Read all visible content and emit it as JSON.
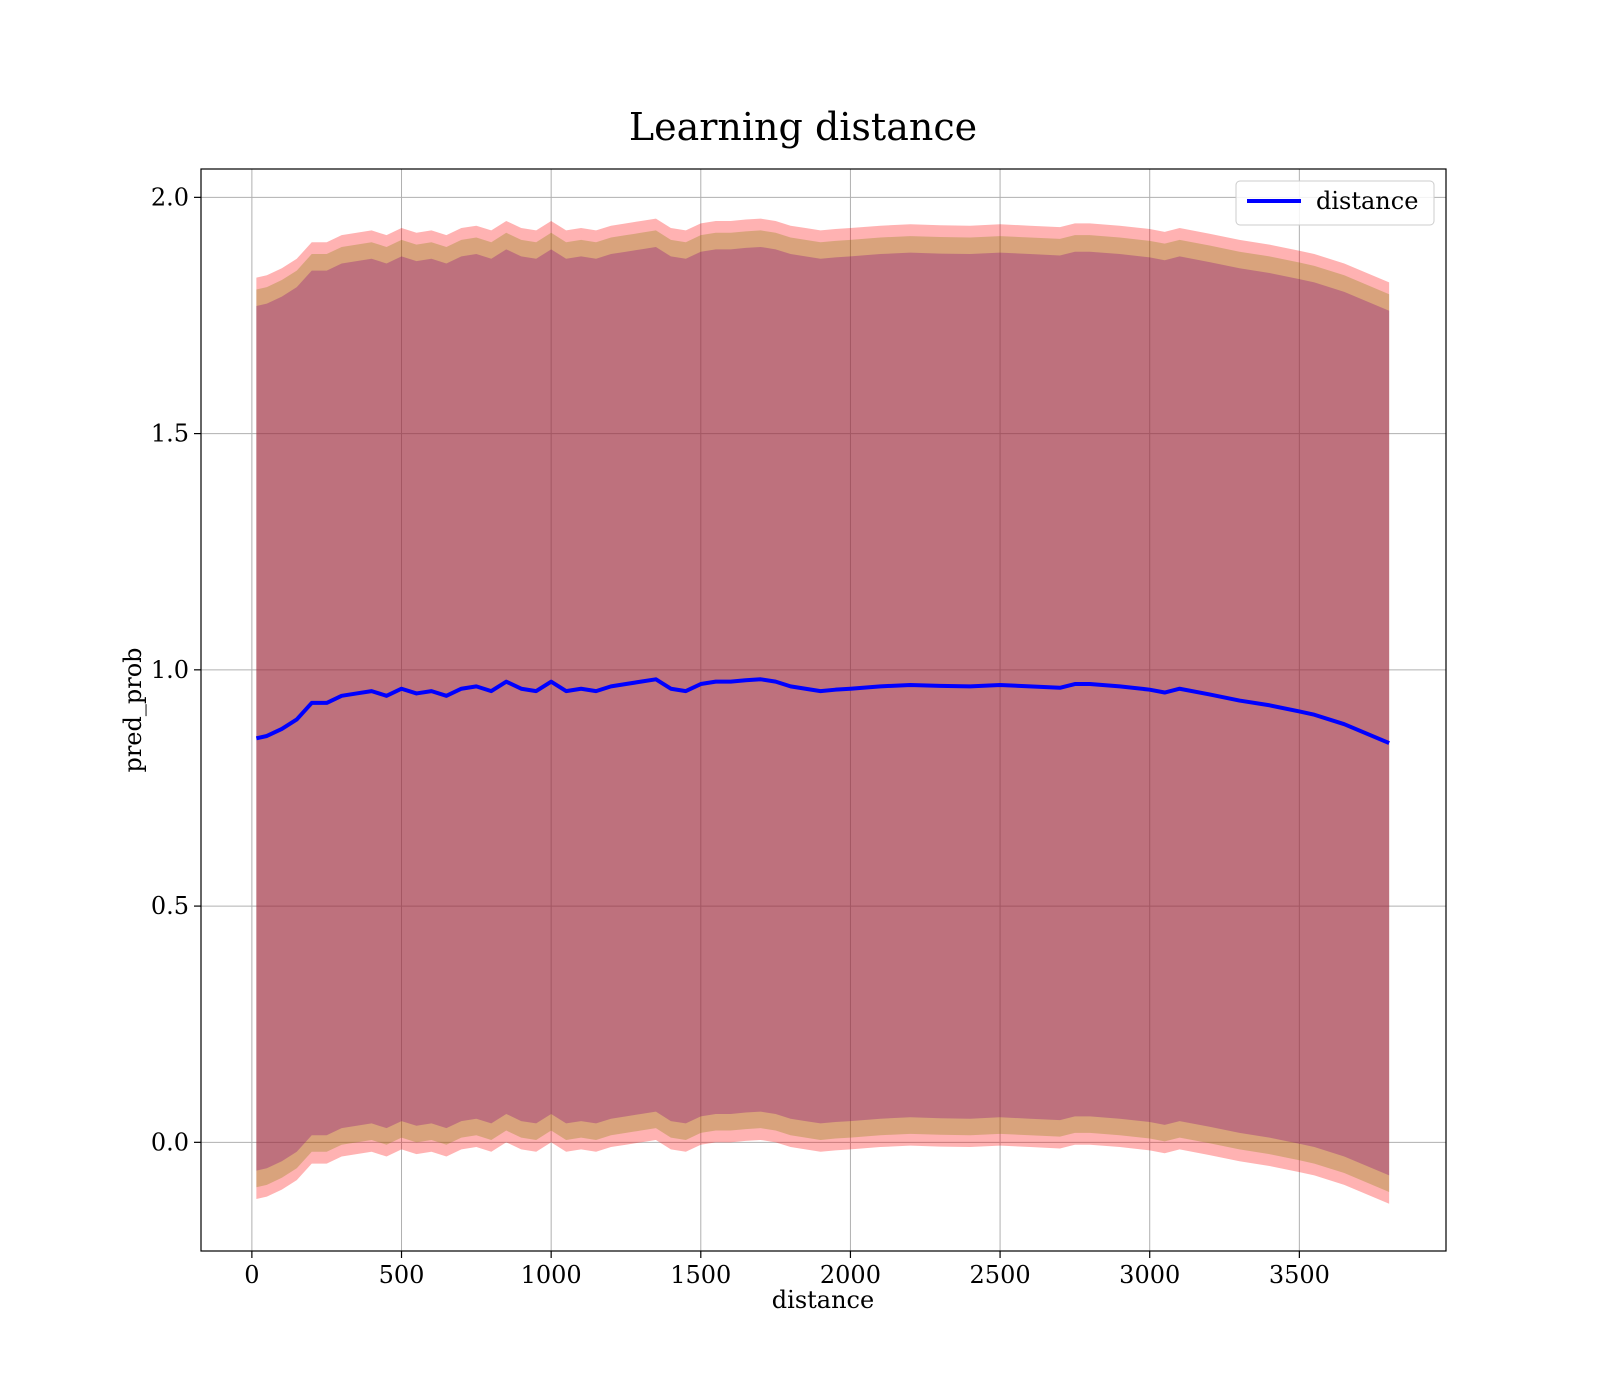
{
  "chart_data": {
    "type": "line",
    "title": "Learning distance",
    "xlabel": "distance",
    "ylabel": "pred_prob",
    "xlim": [
      -170,
      3990
    ],
    "ylim": [
      -0.23,
      2.06
    ],
    "xticks": [
      0,
      500,
      1000,
      1500,
      2000,
      2500,
      3000,
      3500
    ],
    "yticks": [
      0.0,
      0.5,
      1.0,
      1.5,
      2.0
    ],
    "xtick_labels": [
      "0",
      "500",
      "1000",
      "1500",
      "2000",
      "2500",
      "3000",
      "3500"
    ],
    "ytick_labels": [
      "0.0",
      "0.5",
      "1.0",
      "1.5",
      "2.0"
    ],
    "grid": true,
    "legend": {
      "entries": [
        "distance"
      ],
      "placement": "upper right"
    },
    "colors": {
      "line": "#0000ff",
      "band_outer": "#ff0000",
      "band_mid": "#808000",
      "band_inner": "#800080",
      "grid": "#b0b0b0"
    },
    "x": [
      15,
      50,
      100,
      150,
      200,
      250,
      300,
      350,
      400,
      450,
      500,
      550,
      600,
      650,
      700,
      750,
      800,
      850,
      900,
      950,
      1000,
      1050,
      1100,
      1150,
      1200,
      1250,
      1300,
      1350,
      1400,
      1450,
      1500,
      1550,
      1600,
      1650,
      1700,
      1750,
      1800,
      1850,
      1900,
      1950,
      2000,
      2100,
      2200,
      2300,
      2400,
      2500,
      2600,
      2700,
      2750,
      2800,
      2900,
      3000,
      3050,
      3100,
      3200,
      3300,
      3400,
      3500,
      3550,
      3650,
      3800
    ],
    "series": [
      {
        "name": "distance",
        "values": [
          0.855,
          0.86,
          0.875,
          0.895,
          0.93,
          0.93,
          0.945,
          0.95,
          0.955,
          0.945,
          0.96,
          0.95,
          0.955,
          0.945,
          0.96,
          0.965,
          0.955,
          0.975,
          0.96,
          0.955,
          0.975,
          0.955,
          0.96,
          0.955,
          0.965,
          0.97,
          0.975,
          0.98,
          0.96,
          0.955,
          0.97,
          0.975,
          0.975,
          0.978,
          0.98,
          0.975,
          0.965,
          0.96,
          0.955,
          0.958,
          0.96,
          0.965,
          0.968,
          0.966,
          0.965,
          0.968,
          0.965,
          0.962,
          0.97,
          0.97,
          0.965,
          0.958,
          0.952,
          0.96,
          0.948,
          0.935,
          0.925,
          0.912,
          0.905,
          0.885,
          0.845
        ]
      }
    ],
    "bands": [
      {
        "level": "outer",
        "half_width": 0.975
      },
      {
        "level": "middle",
        "half_width": 0.95
      },
      {
        "level": "inner",
        "half_width": 0.915
      }
    ]
  }
}
